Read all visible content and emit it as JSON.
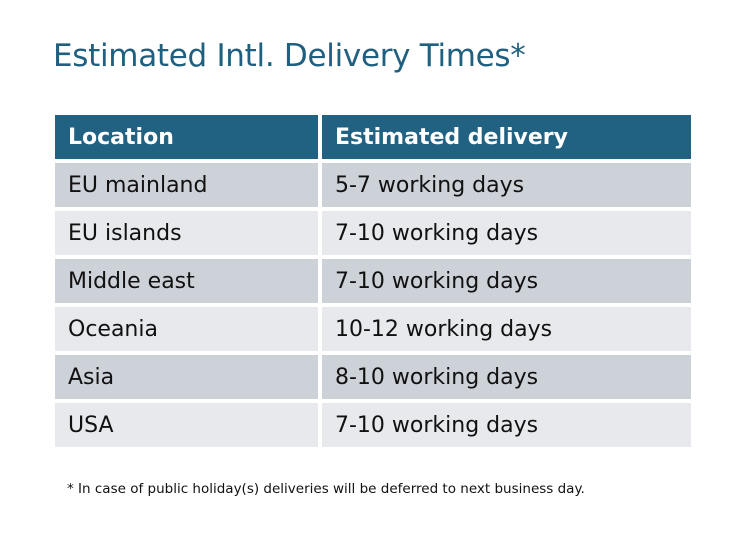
{
  "title": "Estimated Intl. Delivery Times*",
  "table": {
    "headers": [
      "Location",
      "Estimated delivery"
    ],
    "rows": [
      [
        "EU mainland",
        "5-7 working days"
      ],
      [
        "EU islands",
        "7-10 working days"
      ],
      [
        "Middle east",
        "7-10 working days"
      ],
      [
        "Oceania",
        "10-12 working days"
      ],
      [
        "Asia",
        "8-10 working days"
      ],
      [
        "USA",
        "7-10 working days"
      ]
    ]
  },
  "footnote": "* In case of public holiday(s) deliveries will be deferred to next business day.",
  "colors": {
    "header": "#216182",
    "row_dark": "#cdd1d8",
    "row_light": "#e7e9ec",
    "title": "#1f5f80"
  }
}
